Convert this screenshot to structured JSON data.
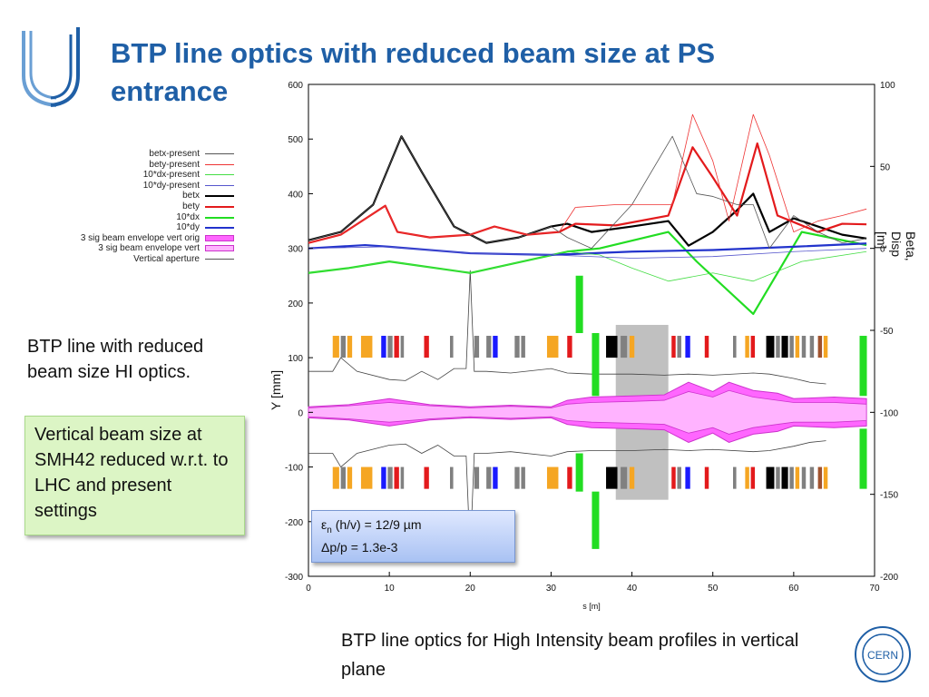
{
  "slide": {
    "title": "BTP line optics with reduced beam size at PS entrance",
    "text_block": "BTP line with reduced beam size HI optics.",
    "green_box": "Vertical beam size at SMH42 reduced w.r.t. to LHC and present settings",
    "caption": "BTP line optics for High Intensity beam profiles in vertical plane",
    "epsilon_box": {
      "line1": "εn (h/v) = 12/9 µm",
      "line2": "Δp/p = 1.3e-3"
    },
    "cern_label": "CERN"
  },
  "colors": {
    "title": "#1f5fa6",
    "black": "#000000",
    "red": "#e31a1c",
    "green": "#22dd22",
    "blue": "#2233cc",
    "magenta_fill": "#ff66ff",
    "light_magenta_fill": "#ffb3ff",
    "gray_block": "#c0c0c0"
  },
  "chart_data": {
    "type": "line",
    "xlabel": "s [m]",
    "ylabel_left": "Y [mm]",
    "ylabel_right": "Beta, Disp [m]",
    "xlim": [
      0,
      70
    ],
    "ylim_left": [
      -300,
      600
    ],
    "ylim_right": [
      -200,
      100
    ],
    "xticks": [
      0,
      10,
      20,
      30,
      40,
      50,
      60,
      70
    ],
    "yticks_left": [
      -300,
      -200,
      -100,
      0,
      100,
      200,
      300,
      400,
      500,
      600
    ],
    "yticks_right": [
      -200,
      -150,
      -100,
      -50,
      0,
      50,
      100
    ],
    "legend": [
      {
        "name": "betx-present",
        "color": "#555555",
        "style": "thin"
      },
      {
        "name": "bety-present",
        "color": "#ee3333",
        "style": "thin"
      },
      {
        "name": "10*dx-present",
        "color": "#44dd44",
        "style": "thin"
      },
      {
        "name": "10*dy-present",
        "color": "#5555cc",
        "style": "thin"
      },
      {
        "name": "betx",
        "color": "#000000",
        "style": "thick"
      },
      {
        "name": "bety",
        "color": "#e31a1c",
        "style": "thick"
      },
      {
        "name": "10*dx",
        "color": "#22dd22",
        "style": "thick"
      },
      {
        "name": "10*dy",
        "color": "#2233cc",
        "style": "thick"
      },
      {
        "name": "3 sig beam envelope vert orig",
        "color": "#ff66ff",
        "style": "rect"
      },
      {
        "name": "3 sig beam envelope vert",
        "color": "#ffb3ff",
        "style": "rect"
      },
      {
        "name": "Vertical aperture",
        "color": "#555555",
        "style": "thin"
      }
    ],
    "series": [
      {
        "name": "betx",
        "axis": "left",
        "color": "#000000",
        "width": 2.2,
        "x": [
          0,
          4,
          8,
          11.5,
          14,
          18,
          22,
          26,
          30,
          32,
          35,
          40,
          44.5,
          47,
          50,
          53,
          55,
          57,
          60,
          63,
          66,
          69
        ],
        "y": [
          315,
          330,
          380,
          505,
          440,
          340,
          310,
          320,
          340,
          345,
          330,
          340,
          350,
          305,
          330,
          370,
          400,
          330,
          355,
          340,
          325,
          318
        ]
      },
      {
        "name": "bety",
        "axis": "left",
        "color": "#e31a1c",
        "width": 2.2,
        "x": [
          0,
          4,
          9.5,
          11,
          15,
          20,
          23,
          27,
          31,
          33,
          38,
          44.5,
          47.5,
          50,
          53,
          55.5,
          58,
          60.5,
          63,
          66,
          69
        ],
        "y": [
          310,
          325,
          378,
          330,
          320,
          325,
          340,
          325,
          330,
          345,
          342,
          360,
          485,
          430,
          360,
          492,
          360,
          345,
          330,
          345,
          344
        ]
      },
      {
        "name": "10*dx",
        "axis": "right",
        "color": "#22dd22",
        "width": 2.2,
        "x": [
          0,
          5,
          10,
          20,
          32,
          36,
          44.5,
          48,
          55,
          61,
          66,
          69
        ],
        "y": [
          -15,
          -12,
          -8,
          -15,
          -2,
          0,
          10,
          -8,
          -40,
          10,
          5,
          2
        ]
      },
      {
        "name": "10*dy",
        "axis": "right",
        "color": "#2233cc",
        "width": 2.2,
        "x": [
          0,
          7,
          10,
          20,
          30,
          40,
          50,
          60,
          69
        ],
        "y": [
          0,
          2,
          1,
          -3,
          -4,
          -2,
          -1,
          1,
          3
        ]
      },
      {
        "name": "betx-present",
        "axis": "left",
        "color": "#555555",
        "width": 0.8,
        "x": [
          0,
          4,
          8,
          11.5,
          14,
          18,
          22,
          26,
          30,
          32,
          35,
          40,
          45,
          48,
          50,
          53,
          55,
          57,
          60,
          63,
          66,
          69
        ],
        "y": [
          315,
          330,
          380,
          505,
          440,
          340,
          310,
          320,
          340,
          320,
          300,
          380,
          505,
          400,
          395,
          380,
          380,
          300,
          360,
          330,
          310,
          318
        ]
      },
      {
        "name": "bety-present",
        "axis": "left",
        "color": "#ee3333",
        "width": 0.8,
        "x": [
          0,
          4,
          9.5,
          11,
          15,
          20,
          23,
          27,
          31,
          33,
          38,
          45,
          47.5,
          50,
          52,
          55,
          57,
          60,
          63,
          66,
          69
        ],
        "y": [
          310,
          325,
          378,
          330,
          320,
          325,
          340,
          325,
          330,
          375,
          380,
          380,
          545,
          460,
          350,
          545,
          470,
          330,
          350,
          360,
          372
        ]
      },
      {
        "name": "10*dx-present",
        "axis": "right",
        "color": "#44dd44",
        "width": 0.8,
        "x": [
          0,
          5,
          10,
          20,
          32,
          36,
          40,
          44.5,
          50,
          55,
          61,
          69
        ],
        "y": [
          -15,
          -12,
          -8,
          -15,
          -2,
          -4,
          -12,
          -20,
          -15,
          -20,
          -8,
          -2
        ]
      },
      {
        "name": "10*dy-present",
        "axis": "right",
        "color": "#5555cc",
        "width": 0.8,
        "x": [
          0,
          10,
          20,
          30,
          40,
          50,
          60,
          69
        ],
        "y": [
          0,
          1,
          -3,
          -4,
          -6,
          -5,
          -2,
          0
        ]
      }
    ],
    "envelope": {
      "x": [
        0,
        5,
        10,
        15,
        20,
        25,
        30,
        32,
        35,
        40,
        44,
        47,
        50,
        52,
        55,
        58,
        60,
        65,
        69
      ],
      "orig_half": [
        10,
        14,
        25,
        14,
        10,
        13,
        10,
        22,
        28,
        30,
        32,
        55,
        38,
        55,
        40,
        35,
        25,
        28,
        25
      ],
      "reduced_half": [
        8,
        12,
        18,
        12,
        8,
        11,
        8,
        15,
        18,
        20,
        22,
        38,
        28,
        40,
        28,
        22,
        18,
        18,
        15
      ]
    },
    "aperture": {
      "x": [
        0,
        3,
        4,
        6,
        10,
        12,
        14,
        16,
        18,
        19.5,
        20,
        20.5,
        22,
        25,
        30,
        32,
        35,
        38,
        40,
        44,
        47,
        50,
        55,
        57,
        60,
        62,
        64
      ],
      "y": [
        75,
        75,
        100,
        75,
        60,
        58,
        75,
        60,
        80,
        80,
        260,
        75,
        75,
        72,
        80,
        72,
        70,
        70,
        70,
        68,
        70,
        68,
        72,
        70,
        62,
        55,
        52
      ]
    },
    "shaded_region": {
      "x_start": 38,
      "x_end": 44.5
    },
    "green_marks": [
      {
        "x": 33.5,
        "y_bottom": 145,
        "y_top": 250
      },
      {
        "x": 33.5,
        "y_bottom": -145,
        "y_top": -75
      },
      {
        "x": 35.5,
        "y_bottom": -250,
        "y_top": -145
      },
      {
        "x": 35.5,
        "y_bottom": 30,
        "y_top": 145
      },
      {
        "x": 68.6,
        "y_bottom": 30,
        "y_top": 140
      },
      {
        "x": 68.6,
        "y_bottom": -140,
        "y_top": -30
      }
    ],
    "magnets": [
      {
        "x": 3.0,
        "w": 0.8,
        "c": "#f5a623"
      },
      {
        "x": 4.0,
        "w": 0.6,
        "c": "#808080"
      },
      {
        "x": 4.8,
        "w": 0.6,
        "c": "#f5a623"
      },
      {
        "x": 6.5,
        "w": 1.4,
        "c": "#f5a623"
      },
      {
        "x": 9.0,
        "w": 0.6,
        "c": "#1a1aff"
      },
      {
        "x": 9.8,
        "w": 0.6,
        "c": "#808080"
      },
      {
        "x": 10.6,
        "w": 0.6,
        "c": "#e31a1c"
      },
      {
        "x": 11.4,
        "w": 0.4,
        "c": "#808080"
      },
      {
        "x": 14.3,
        "w": 0.6,
        "c": "#e31a1c"
      },
      {
        "x": 17.5,
        "w": 0.4,
        "c": "#808080"
      },
      {
        "x": 20.5,
        "w": 0.6,
        "c": "#808080"
      },
      {
        "x": 22.0,
        "w": 0.6,
        "c": "#808080"
      },
      {
        "x": 22.8,
        "w": 0.6,
        "c": "#1a1aff"
      },
      {
        "x": 25.5,
        "w": 0.6,
        "c": "#808080"
      },
      {
        "x": 26.3,
        "w": 0.5,
        "c": "#808080"
      },
      {
        "x": 29.5,
        "w": 1.4,
        "c": "#f5a623"
      },
      {
        "x": 32.0,
        "w": 0.6,
        "c": "#e31a1c"
      },
      {
        "x": 36.8,
        "w": 1.4,
        "c": "#000000"
      },
      {
        "x": 38.6,
        "w": 0.8,
        "c": "#808080"
      },
      {
        "x": 39.7,
        "w": 0.6,
        "c": "#f5a623"
      },
      {
        "x": 44.9,
        "w": 0.5,
        "c": "#e31a1c"
      },
      {
        "x": 45.6,
        "w": 0.5,
        "c": "#808080"
      },
      {
        "x": 46.6,
        "w": 0.6,
        "c": "#1a1aff"
      },
      {
        "x": 49.0,
        "w": 0.5,
        "c": "#e31a1c"
      },
      {
        "x": 52.5,
        "w": 0.4,
        "c": "#808080"
      },
      {
        "x": 54.0,
        "w": 0.5,
        "c": "#f5a623"
      },
      {
        "x": 54.7,
        "w": 0.5,
        "c": "#e31a1c"
      },
      {
        "x": 56.6,
        "w": 1.0,
        "c": "#000000"
      },
      {
        "x": 57.8,
        "w": 0.5,
        "c": "#808080"
      },
      {
        "x": 58.5,
        "w": 0.8,
        "c": "#000000"
      },
      {
        "x": 59.5,
        "w": 0.5,
        "c": "#808080"
      },
      {
        "x": 60.2,
        "w": 0.5,
        "c": "#f5a623"
      },
      {
        "x": 61.0,
        "w": 0.5,
        "c": "#808080"
      },
      {
        "x": 62.0,
        "w": 0.5,
        "c": "#808080"
      },
      {
        "x": 63.0,
        "w": 0.5,
        "c": "#a0522d"
      },
      {
        "x": 63.7,
        "w": 0.5,
        "c": "#f5a623"
      }
    ]
  }
}
